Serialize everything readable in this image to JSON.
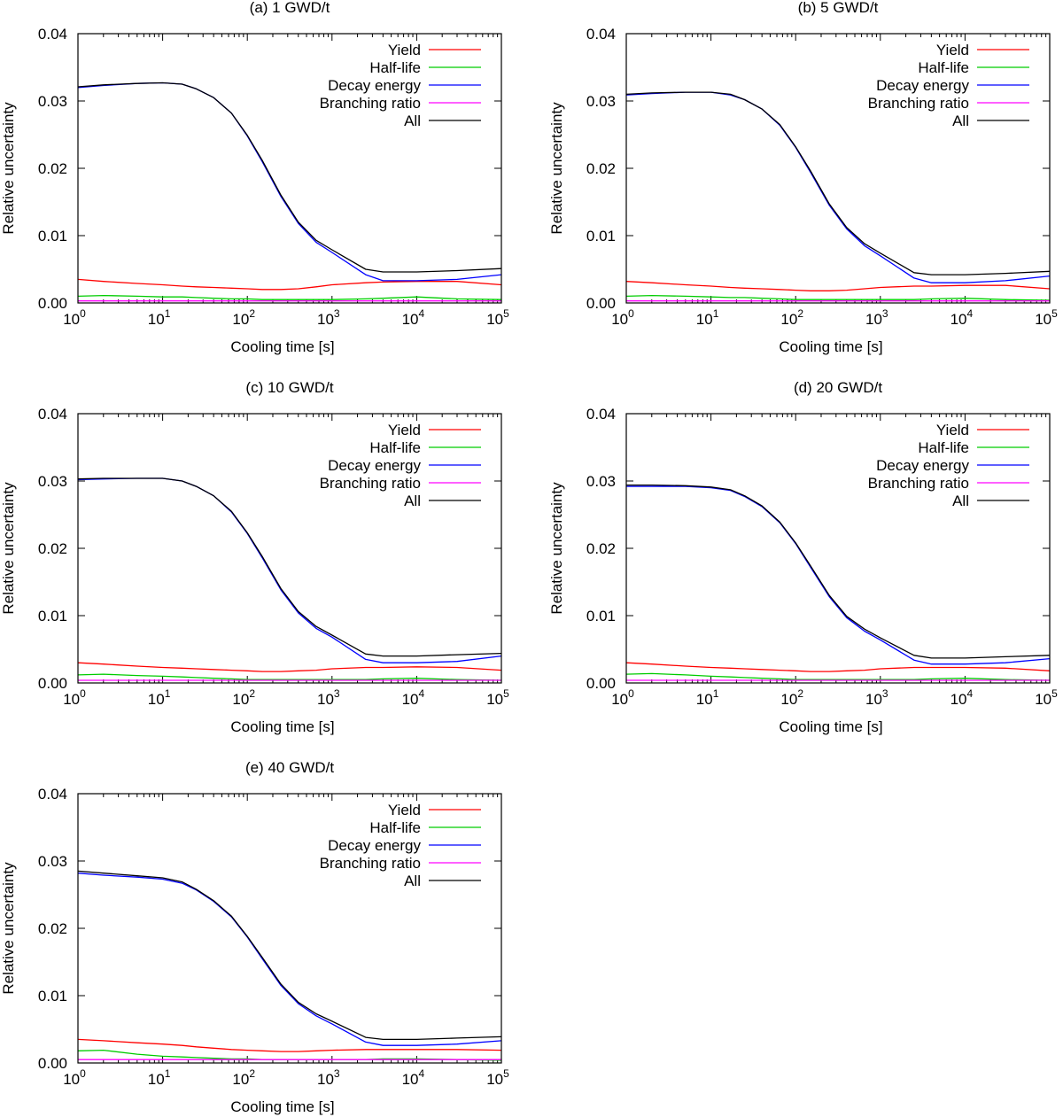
{
  "chart_data": [
    {
      "type": "line",
      "title": "(a) 1 GWD/t",
      "xlabel": "Cooling time [s]",
      "ylabel": "Relative uncertainty",
      "xscale": "log",
      "xlim": [
        1,
        100000
      ],
      "ylim": [
        0,
        0.04
      ],
      "yticks": [
        "0.00",
        "0.01",
        "0.02",
        "0.03",
        "0.04"
      ],
      "xticks": [
        {
          "base": "10",
          "exp": "0"
        },
        {
          "base": "10",
          "exp": "1"
        },
        {
          "base": "10",
          "exp": "2"
        },
        {
          "base": "10",
          "exp": "3"
        },
        {
          "base": "10",
          "exp": "4"
        },
        {
          "base": "10",
          "exp": "5"
        }
      ],
      "legend_position": "top-right",
      "x": [
        1,
        2,
        5,
        10,
        17,
        25,
        40,
        65,
        100,
        150,
        250,
        400,
        650,
        1000,
        2500,
        4000,
        10000,
        30000,
        100000
      ],
      "series": [
        {
          "name": "Yield",
          "color": "#ff0000",
          "values": [
            0.0035,
            0.0032,
            0.0029,
            0.0027,
            0.0025,
            0.0024,
            0.0023,
            0.0022,
            0.0021,
            0.002,
            0.002,
            0.0021,
            0.0024,
            0.0027,
            0.003,
            0.0031,
            0.0032,
            0.0032,
            0.0027
          ]
        },
        {
          "name": "Half-life",
          "color": "#00cc00",
          "values": [
            0.001,
            0.0011,
            0.001,
            0.0009,
            0.0009,
            0.0008,
            0.0007,
            0.0006,
            0.0006,
            0.0005,
            0.0005,
            0.0005,
            0.0005,
            0.0005,
            0.0006,
            0.0007,
            0.0009,
            0.0006,
            0.0005
          ]
        },
        {
          "name": "Decay energy",
          "color": "#0000ff",
          "values": [
            0.032,
            0.0323,
            0.0326,
            0.0327,
            0.0325,
            0.0318,
            0.0305,
            0.0282,
            0.0248,
            0.021,
            0.0158,
            0.0118,
            0.009,
            0.0075,
            0.0042,
            0.0033,
            0.0033,
            0.0035,
            0.0042
          ]
        },
        {
          "name": "Branching ratio",
          "color": "#ff00ff",
          "values": [
            0.0003,
            0.0003,
            0.0003,
            0.0003,
            0.0003,
            0.0003,
            0.0003,
            0.0003,
            0.0003,
            0.0003,
            0.0003,
            0.0003,
            0.0003,
            0.0003,
            0.0003,
            0.0003,
            0.0003,
            0.0003,
            0.0003
          ]
        },
        {
          "name": "All",
          "color": "#000000",
          "values": [
            0.0321,
            0.0324,
            0.0326,
            0.0327,
            0.0325,
            0.0318,
            0.0305,
            0.0282,
            0.0249,
            0.0212,
            0.016,
            0.012,
            0.0093,
            0.0079,
            0.005,
            0.0046,
            0.0046,
            0.0048,
            0.0051
          ]
        }
      ]
    },
    {
      "type": "line",
      "title": "(b) 5 GWD/t",
      "xlabel": "Cooling time [s]",
      "ylabel": "Relative uncertainty",
      "xscale": "log",
      "xlim": [
        1,
        100000
      ],
      "ylim": [
        0,
        0.04
      ],
      "yticks": [
        "0.00",
        "0.01",
        "0.02",
        "0.03",
        "0.04"
      ],
      "xticks": [
        {
          "base": "10",
          "exp": "0"
        },
        {
          "base": "10",
          "exp": "1"
        },
        {
          "base": "10",
          "exp": "2"
        },
        {
          "base": "10",
          "exp": "3"
        },
        {
          "base": "10",
          "exp": "4"
        },
        {
          "base": "10",
          "exp": "5"
        }
      ],
      "legend_position": "top-right",
      "x": [
        1,
        2,
        5,
        10,
        17,
        25,
        40,
        65,
        100,
        150,
        250,
        400,
        650,
        1000,
        2500,
        4000,
        10000,
        30000,
        100000
      ],
      "series": [
        {
          "name": "Yield",
          "color": "#ff0000",
          "values": [
            0.0032,
            0.003,
            0.0027,
            0.0025,
            0.0023,
            0.0022,
            0.0021,
            0.002,
            0.0019,
            0.0018,
            0.0018,
            0.0019,
            0.0021,
            0.0023,
            0.0025,
            0.0025,
            0.0026,
            0.0026,
            0.0021
          ]
        },
        {
          "name": "Half-life",
          "color": "#00cc00",
          "values": [
            0.001,
            0.0011,
            0.001,
            0.0009,
            0.0008,
            0.0008,
            0.0007,
            0.0006,
            0.0005,
            0.0005,
            0.0005,
            0.0005,
            0.0005,
            0.0005,
            0.0005,
            0.0006,
            0.0007,
            0.0005,
            0.0004
          ]
        },
        {
          "name": "Decay energy",
          "color": "#0000ff",
          "values": [
            0.0309,
            0.0311,
            0.0313,
            0.0313,
            0.0309,
            0.0302,
            0.0288,
            0.0264,
            0.0231,
            0.0194,
            0.0145,
            0.011,
            0.0085,
            0.007,
            0.0037,
            0.003,
            0.003,
            0.0033,
            0.004
          ]
        },
        {
          "name": "Branching ratio",
          "color": "#ff00ff",
          "values": [
            0.0003,
            0.0003,
            0.0003,
            0.0003,
            0.0003,
            0.0003,
            0.0003,
            0.0003,
            0.0003,
            0.0003,
            0.0003,
            0.0003,
            0.0003,
            0.0003,
            0.0003,
            0.0003,
            0.0003,
            0.0003,
            0.0003
          ]
        },
        {
          "name": "All",
          "color": "#000000",
          "values": [
            0.031,
            0.0312,
            0.0313,
            0.0313,
            0.031,
            0.0302,
            0.0288,
            0.0265,
            0.0232,
            0.0196,
            0.0147,
            0.0112,
            0.0088,
            0.0074,
            0.0045,
            0.0042,
            0.0042,
            0.0044,
            0.0047
          ]
        }
      ]
    },
    {
      "type": "line",
      "title": "(c) 10 GWD/t",
      "xlabel": "Cooling time [s]",
      "ylabel": "Relative uncertainty",
      "xscale": "log",
      "xlim": [
        1,
        100000
      ],
      "ylim": [
        0,
        0.04
      ],
      "yticks": [
        "0.00",
        "0.01",
        "0.02",
        "0.03",
        "0.04"
      ],
      "xticks": [
        {
          "base": "10",
          "exp": "0"
        },
        {
          "base": "10",
          "exp": "1"
        },
        {
          "base": "10",
          "exp": "2"
        },
        {
          "base": "10",
          "exp": "3"
        },
        {
          "base": "10",
          "exp": "4"
        },
        {
          "base": "10",
          "exp": "5"
        }
      ],
      "legend_position": "top-right",
      "x": [
        1,
        2,
        5,
        10,
        17,
        25,
        40,
        65,
        100,
        150,
        250,
        400,
        650,
        1000,
        2500,
        4000,
        10000,
        30000,
        100000
      ],
      "series": [
        {
          "name": "Yield",
          "color": "#ff0000",
          "values": [
            0.003,
            0.0028,
            0.0025,
            0.0023,
            0.0022,
            0.0021,
            0.002,
            0.0019,
            0.0018,
            0.0017,
            0.0017,
            0.0018,
            0.0019,
            0.0021,
            0.0023,
            0.0023,
            0.0024,
            0.0023,
            0.0019
          ]
        },
        {
          "name": "Half-life",
          "color": "#00cc00",
          "values": [
            0.0012,
            0.0013,
            0.0011,
            0.001,
            0.0009,
            0.0008,
            0.0007,
            0.0006,
            0.0005,
            0.0005,
            0.0005,
            0.0005,
            0.0005,
            0.0005,
            0.0005,
            0.0006,
            0.0007,
            0.0005,
            0.0004
          ]
        },
        {
          "name": "Decay energy",
          "color": "#0000ff",
          "values": [
            0.0302,
            0.0303,
            0.0304,
            0.0304,
            0.03,
            0.0292,
            0.0278,
            0.0254,
            0.0222,
            0.0186,
            0.0138,
            0.0104,
            0.0081,
            0.0068,
            0.0035,
            0.003,
            0.003,
            0.0032,
            0.004
          ]
        },
        {
          "name": "Branching ratio",
          "color": "#ff00ff",
          "values": [
            0.0004,
            0.0004,
            0.0004,
            0.0004,
            0.0004,
            0.0004,
            0.0004,
            0.0004,
            0.0004,
            0.0004,
            0.0004,
            0.0004,
            0.0004,
            0.0004,
            0.0004,
            0.0004,
            0.0004,
            0.0004,
            0.0004
          ]
        },
        {
          "name": "All",
          "color": "#000000",
          "values": [
            0.0303,
            0.0304,
            0.0304,
            0.0304,
            0.03,
            0.0292,
            0.0278,
            0.0255,
            0.0223,
            0.0188,
            0.014,
            0.0106,
            0.0084,
            0.0071,
            0.0043,
            0.004,
            0.004,
            0.0042,
            0.0044
          ]
        }
      ]
    },
    {
      "type": "line",
      "title": "(d) 20 GWD/t",
      "xlabel": "Cooling time [s]",
      "ylabel": "Relative uncertainty",
      "xscale": "log",
      "xlim": [
        1,
        100000
      ],
      "ylim": [
        0,
        0.04
      ],
      "yticks": [
        "0.00",
        "0.01",
        "0.02",
        "0.03",
        "0.04"
      ],
      "xticks": [
        {
          "base": "10",
          "exp": "0"
        },
        {
          "base": "10",
          "exp": "1"
        },
        {
          "base": "10",
          "exp": "2"
        },
        {
          "base": "10",
          "exp": "3"
        },
        {
          "base": "10",
          "exp": "4"
        },
        {
          "base": "10",
          "exp": "5"
        }
      ],
      "legend_position": "top-right",
      "x": [
        1,
        2,
        5,
        10,
        17,
        25,
        40,
        65,
        100,
        150,
        250,
        400,
        650,
        1000,
        2500,
        4000,
        10000,
        30000,
        100000
      ],
      "series": [
        {
          "name": "Yield",
          "color": "#ff0000",
          "values": [
            0.003,
            0.0028,
            0.0025,
            0.0023,
            0.0022,
            0.0021,
            0.002,
            0.0019,
            0.0018,
            0.0017,
            0.0017,
            0.0018,
            0.0019,
            0.0021,
            0.0023,
            0.0023,
            0.0023,
            0.0022,
            0.0018
          ]
        },
        {
          "name": "Half-life",
          "color": "#00cc00",
          "values": [
            0.0013,
            0.0014,
            0.0012,
            0.001,
            0.0009,
            0.0008,
            0.0007,
            0.0006,
            0.0005,
            0.0005,
            0.0005,
            0.0005,
            0.0005,
            0.0005,
            0.0005,
            0.0006,
            0.0007,
            0.0005,
            0.0004
          ]
        },
        {
          "name": "Decay energy",
          "color": "#0000ff",
          "values": [
            0.0292,
            0.0292,
            0.0292,
            0.029,
            0.0286,
            0.0277,
            0.0262,
            0.0238,
            0.0207,
            0.0172,
            0.0128,
            0.0097,
            0.0077,
            0.0064,
            0.0034,
            0.0028,
            0.0028,
            0.003,
            0.0036
          ]
        },
        {
          "name": "Branching ratio",
          "color": "#ff00ff",
          "values": [
            0.0004,
            0.0004,
            0.0004,
            0.0004,
            0.0004,
            0.0004,
            0.0004,
            0.0004,
            0.0004,
            0.0004,
            0.0004,
            0.0004,
            0.0004,
            0.0004,
            0.0004,
            0.0004,
            0.0004,
            0.0004,
            0.0004
          ]
        },
        {
          "name": "All",
          "color": "#000000",
          "values": [
            0.0294,
            0.0294,
            0.0293,
            0.0291,
            0.0287,
            0.0278,
            0.0263,
            0.0239,
            0.0208,
            0.0174,
            0.013,
            0.0099,
            0.008,
            0.0067,
            0.0041,
            0.0037,
            0.0037,
            0.0039,
            0.0041
          ]
        }
      ]
    },
    {
      "type": "line",
      "title": "(e) 40 GWD/t",
      "xlabel": "Cooling time [s]",
      "ylabel": "Relative uncertainty",
      "xscale": "log",
      "xlim": [
        1,
        100000
      ],
      "ylim": [
        0,
        0.04
      ],
      "yticks": [
        "0.00",
        "0.01",
        "0.02",
        "0.03",
        "0.04"
      ],
      "xticks": [
        {
          "base": "10",
          "exp": "0"
        },
        {
          "base": "10",
          "exp": "1"
        },
        {
          "base": "10",
          "exp": "2"
        },
        {
          "base": "10",
          "exp": "3"
        },
        {
          "base": "10",
          "exp": "4"
        },
        {
          "base": "10",
          "exp": "5"
        }
      ],
      "legend_position": "top-right",
      "x": [
        1,
        2,
        5,
        10,
        17,
        25,
        40,
        65,
        100,
        150,
        250,
        400,
        650,
        1000,
        2500,
        4000,
        10000,
        30000,
        100000
      ],
      "series": [
        {
          "name": "Yield",
          "color": "#ff0000",
          "values": [
            0.0035,
            0.0033,
            0.003,
            0.0028,
            0.0026,
            0.0024,
            0.0022,
            0.002,
            0.0019,
            0.0018,
            0.0017,
            0.0017,
            0.0018,
            0.0019,
            0.002,
            0.002,
            0.002,
            0.002,
            0.0019
          ]
        },
        {
          "name": "Half-life",
          "color": "#00cc00",
          "values": [
            0.0018,
            0.0019,
            0.0013,
            0.001,
            0.0009,
            0.0008,
            0.0007,
            0.0006,
            0.0006,
            0.0005,
            0.0005,
            0.0005,
            0.0005,
            0.0005,
            0.0005,
            0.0006,
            0.0006,
            0.0005,
            0.0004
          ]
        },
        {
          "name": "Decay energy",
          "color": "#0000ff",
          "values": [
            0.0282,
            0.0279,
            0.0276,
            0.0273,
            0.0267,
            0.0257,
            0.024,
            0.0217,
            0.0187,
            0.0155,
            0.0115,
            0.0088,
            0.007,
            0.0058,
            0.0031,
            0.0026,
            0.0026,
            0.0028,
            0.0033
          ]
        },
        {
          "name": "Branching ratio",
          "color": "#ff00ff",
          "values": [
            0.0005,
            0.0005,
            0.0005,
            0.0005,
            0.0005,
            0.0005,
            0.0005,
            0.0005,
            0.0005,
            0.0005,
            0.0005,
            0.0005,
            0.0005,
            0.0005,
            0.0005,
            0.0005,
            0.0005,
            0.0005,
            0.0005
          ]
        },
        {
          "name": "All",
          "color": "#000000",
          "values": [
            0.0285,
            0.0282,
            0.0278,
            0.0275,
            0.0269,
            0.0258,
            0.0241,
            0.0218,
            0.0188,
            0.0157,
            0.0117,
            0.009,
            0.0073,
            0.0062,
            0.0038,
            0.0035,
            0.0035,
            0.0037,
            0.0039
          ]
        }
      ]
    }
  ]
}
